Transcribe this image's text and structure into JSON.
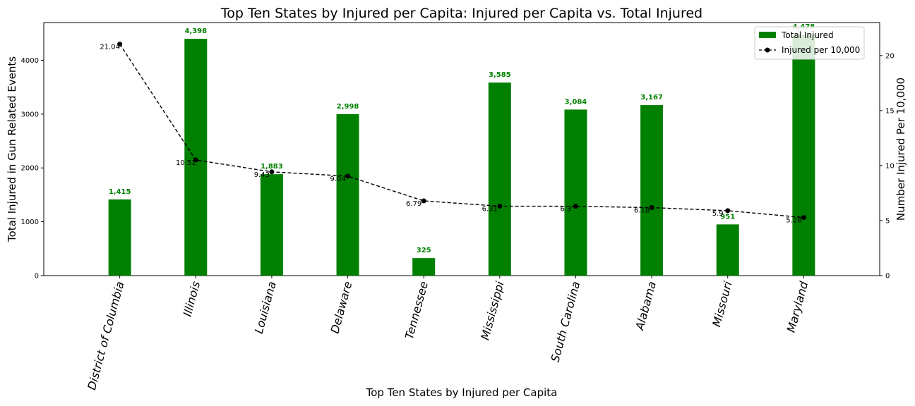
{
  "chart_data": {
    "type": "bar",
    "title": "Top Ten States by Injured per Capita: Injured per Capita vs. Total Injured",
    "xlabel": "Top Ten States by Injured per Capita",
    "ylabel_left": "Total Injured in Gun Related Events",
    "ylabel_right": "Number Injured Per 10,000",
    "categories": [
      "District of Columbia",
      "Illinois",
      "Louisiana",
      "Delaware",
      "Tennessee",
      "Mississippi",
      "South Carolina",
      "Alabama",
      "Missouri",
      "Maryland"
    ],
    "series": [
      {
        "name": "Total Injured",
        "kind": "bar",
        "axis": "left",
        "color": "#008000",
        "values": [
          1415,
          4398,
          1883,
          2998,
          325,
          3585,
          3084,
          3167,
          951,
          4478
        ],
        "labels": [
          "1,415",
          "4,398",
          "1,883",
          "2,998",
          "325",
          "3,585",
          "3,084",
          "3,167",
          "951",
          "4,478"
        ]
      },
      {
        "name": "Injured per 10,000",
        "kind": "line",
        "axis": "right",
        "color": "#000000",
        "values": [
          21.04,
          10.51,
          9.43,
          9.04,
          6.79,
          6.31,
          6.3,
          6.18,
          5.9,
          5.28
        ],
        "labels": [
          "21.04",
          "10.51",
          "9.43",
          "9.04",
          "6.79",
          "6.31",
          "6.3",
          "6.18",
          "5.9",
          "5.28"
        ]
      }
    ],
    "ylim_left": [
      0,
      4700
    ],
    "yticks_left": [
      0,
      1000,
      2000,
      3000,
      4000
    ],
    "ylim_right": [
      0,
      23
    ],
    "yticks_right": [
      0,
      5,
      10,
      15,
      20
    ],
    "legend_position": "top-right",
    "grid": false
  }
}
